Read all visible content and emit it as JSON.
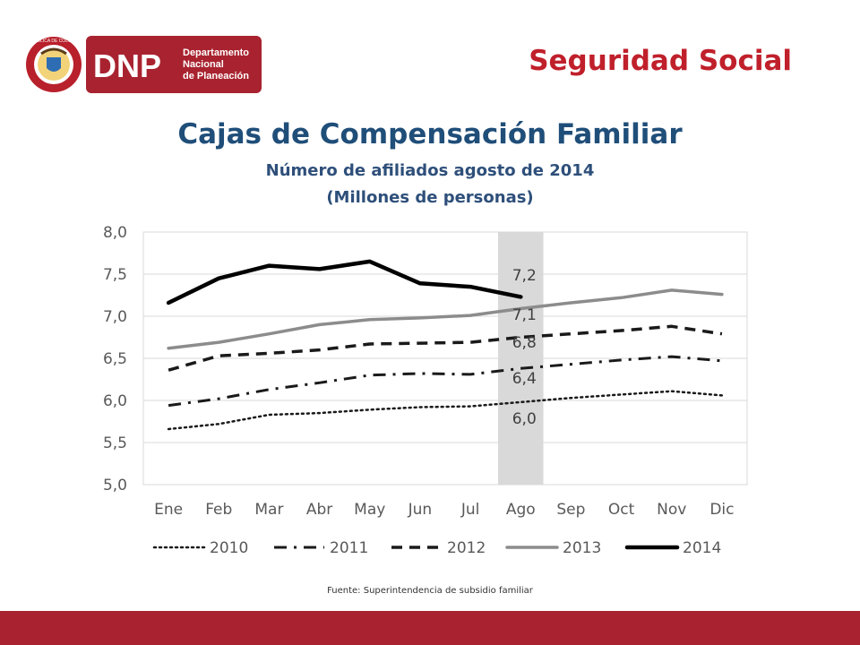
{
  "logo": {
    "seal_text": "REPÚBLICA DE COLOMBIA",
    "acronym": "DNP",
    "name_lines": [
      "Departamento",
      "Nacional",
      "de Planeación"
    ]
  },
  "section_title": "Seguridad Social",
  "source": "Fuente: Superintendencia de subsidio familiar",
  "colors": {
    "accent": "#c0202b",
    "title": "#1f4e79",
    "footer": "#a8232f",
    "highlight": "#d9d9d9"
  },
  "chart_data": {
    "type": "line",
    "title": "Cajas de Compensación Familiar",
    "subtitle": [
      "Número de afiliados agosto de 2014",
      "(Millones de personas)"
    ],
    "xlabel": "",
    "ylabel": "",
    "categories": [
      "Ene",
      "Feb",
      "Mar",
      "Abr",
      "May",
      "Jun",
      "Jul",
      "Ago",
      "Sep",
      "Oct",
      "Nov",
      "Dic"
    ],
    "ylim": [
      5.0,
      8.0
    ],
    "yticks": [
      "5,0",
      "5,5",
      "6,0",
      "6,5",
      "7,0",
      "7,5",
      "8,0"
    ],
    "grid": true,
    "legend": "bottom",
    "highlight_category": "Ago",
    "series": [
      {
        "name": "2010",
        "style": "dotted",
        "color": "#1a1a1a",
        "values": [
          5.66,
          5.72,
          5.83,
          5.85,
          5.89,
          5.92,
          5.93,
          5.98,
          6.03,
          6.07,
          6.11,
          6.06
        ]
      },
      {
        "name": "2011",
        "style": "dashdot",
        "color": "#1a1a1a",
        "values": [
          5.94,
          6.02,
          6.13,
          6.21,
          6.3,
          6.32,
          6.31,
          6.38,
          6.43,
          6.48,
          6.52,
          6.47
        ]
      },
      {
        "name": "2012",
        "style": "dashed",
        "color": "#1a1a1a",
        "values": [
          6.36,
          6.53,
          6.56,
          6.6,
          6.67,
          6.68,
          6.69,
          6.75,
          6.79,
          6.83,
          6.88,
          6.79
        ]
      },
      {
        "name": "2013",
        "style": "solid-gray",
        "color": "#8c8c8c",
        "values": [
          6.62,
          6.69,
          6.79,
          6.9,
          6.96,
          6.98,
          7.01,
          7.09,
          7.16,
          7.22,
          7.31,
          7.26
        ]
      },
      {
        "name": "2014",
        "style": "solid-thick",
        "color": "#000000",
        "values": [
          7.16,
          7.45,
          7.6,
          7.56,
          7.65,
          7.39,
          7.35,
          7.23,
          null,
          null,
          null,
          null
        ]
      }
    ],
    "annotations": [
      {
        "text": "7,2",
        "value": 7.2
      },
      {
        "text": "7,1",
        "value": 7.1
      },
      {
        "text": "6,8",
        "value": 6.8
      },
      {
        "text": "6,4",
        "value": 6.4
      },
      {
        "text": "6,0",
        "value": 6.0
      }
    ]
  }
}
